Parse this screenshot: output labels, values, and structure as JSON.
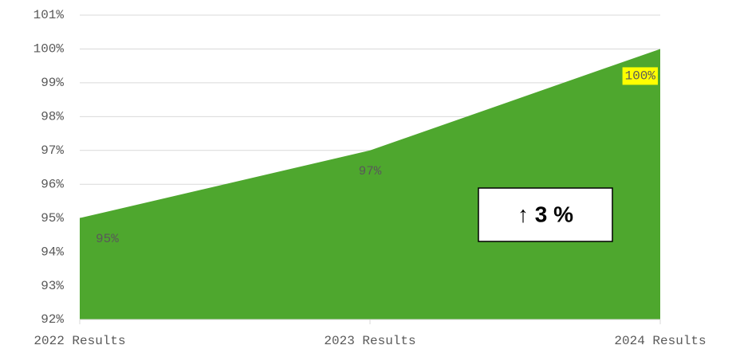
{
  "chart_data": {
    "type": "area",
    "categories": [
      "2022 Results",
      "2023 Results",
      "2024 Results"
    ],
    "series": [
      {
        "name": null,
        "color": "#4ea72e",
        "values": [
          95,
          97,
          100
        ],
        "value_labels": [
          "95%",
          "97%",
          "100%"
        ]
      }
    ],
    "ylim": [
      92,
      101
    ],
    "yticks": [
      {
        "value": 92,
        "label": "92%"
      },
      {
        "value": 93,
        "label": "93%"
      },
      {
        "value": 94,
        "label": "94%"
      },
      {
        "value": 95,
        "label": "95%"
      },
      {
        "value": 96,
        "label": "96%"
      },
      {
        "value": 97,
        "label": "97%"
      },
      {
        "value": 98,
        "label": "98%"
      },
      {
        "value": 99,
        "label": "99%"
      },
      {
        "value": 100,
        "label": "100%"
      },
      {
        "value": 101,
        "label": "101%"
      }
    ],
    "grid": true,
    "highlight_index": 2,
    "highlight_color": "#ffff00",
    "annotation": "↑ 3 %"
  }
}
